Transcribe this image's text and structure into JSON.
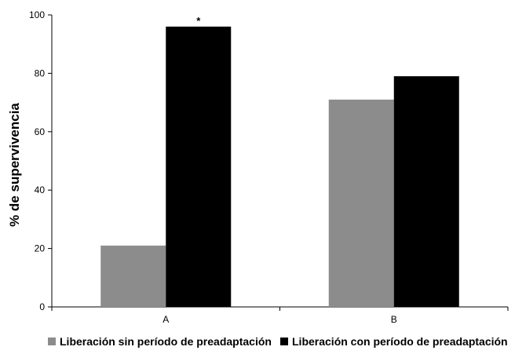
{
  "chart_data": {
    "type": "bar",
    "categories": [
      "A",
      "B"
    ],
    "series": [
      {
        "name": "Liberación sin período de preadaptación",
        "color": "#8c8c8c",
        "values": [
          21,
          71
        ]
      },
      {
        "name": "Liberación con período de preadaptación",
        "color": "#000000",
        "values": [
          96,
          79
        ]
      }
    ],
    "ylabel": "% de supervivencia",
    "xlabel": "",
    "ylim": [
      0,
      100
    ],
    "yticks": [
      0,
      20,
      40,
      60,
      80,
      100
    ],
    "annotations": [
      {
        "text": "*",
        "category": "A",
        "series": 1
      }
    ],
    "grid": false,
    "legend_position": "bottom"
  }
}
